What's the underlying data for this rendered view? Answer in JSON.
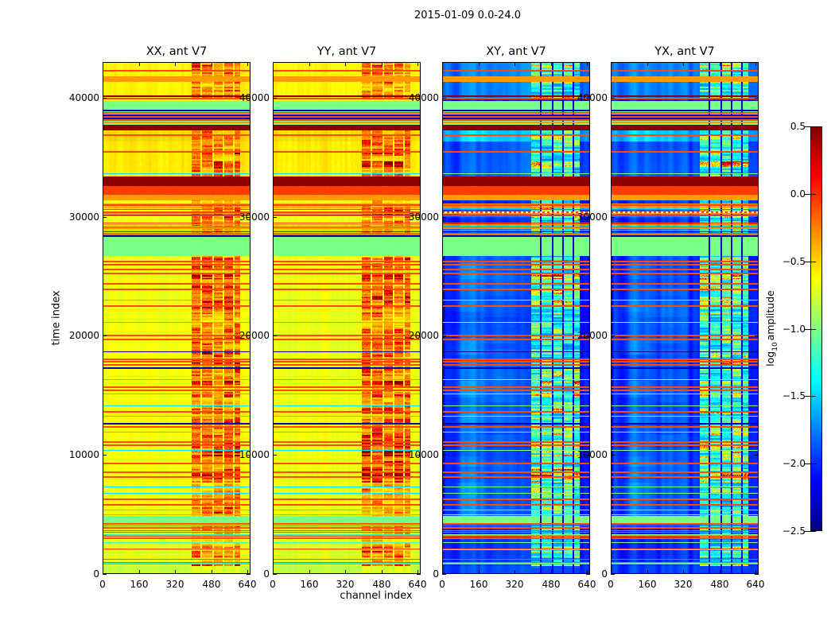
{
  "figure": {
    "suptitle": "2015-01-09 0.0-24.0",
    "background": "#ffffff"
  },
  "chart_data": {
    "type": "heatmap",
    "title": "2015-01-09 0.0-24.0",
    "xlabel": "channel index",
    "ylabel": "time index",
    "x_range": [
      0,
      654
    ],
    "y_range": [
      0,
      43000
    ],
    "x_ticks": [
      0,
      160,
      320,
      480,
      640
    ],
    "y_ticks": [
      0,
      10000,
      20000,
      30000,
      40000
    ],
    "colormap": "jet",
    "clim": [
      -2.5,
      0.5
    ],
    "grid": false,
    "panels": [
      {
        "title": "XX, ant V7",
        "kind": "auto",
        "seed": 1
      },
      {
        "title": "YY, ant V7",
        "kind": "auto",
        "seed": 2
      },
      {
        "title": "XY, ant V7",
        "kind": "cross",
        "seed": 3
      },
      {
        "title": "YX, ant V7",
        "kind": "cross",
        "seed": 4
      }
    ],
    "colorbar": {
      "label_pre": "log",
      "label_sub": "10",
      "label_post": "amplitude",
      "ticks": [
        "0.5",
        "0.0",
        "−0.5",
        "−1.0",
        "−1.5",
        "−2.0",
        "−2.5"
      ],
      "tick_values": [
        0.5,
        0,
        -0.5,
        -1,
        -1.5,
        -2,
        -2.5
      ]
    },
    "bands": [
      [
        0,
        700,
        "quiet"
      ],
      [
        700,
        4300,
        "striped"
      ],
      [
        4300,
        4900,
        "green"
      ],
      [
        4900,
        26700,
        "base"
      ],
      [
        26700,
        28300,
        "green"
      ],
      [
        28300,
        28450,
        "base"
      ],
      [
        28450,
        29500,
        "hotmix"
      ],
      [
        29500,
        29900,
        "base"
      ],
      [
        29900,
        31100,
        "hotmix"
      ],
      [
        31100,
        31350,
        "base"
      ],
      [
        31350,
        31850,
        "orange"
      ],
      [
        31850,
        32600,
        "red"
      ],
      [
        32600,
        33400,
        "maroon"
      ],
      [
        33400,
        36300,
        "base2"
      ],
      [
        36300,
        37250,
        "warm"
      ],
      [
        37250,
        37700,
        "maroon"
      ],
      [
        37700,
        38800,
        "greenlines"
      ],
      [
        38800,
        39750,
        "green"
      ],
      [
        39750,
        39900,
        "base"
      ],
      [
        39900,
        41350,
        "top"
      ],
      [
        41350,
        41800,
        "orange"
      ],
      [
        41800,
        43000,
        "top"
      ]
    ],
    "lines": [
      [
        42250,
        "red"
      ],
      [
        40100,
        "maroon"
      ],
      [
        39950,
        "red"
      ],
      [
        38950,
        "blue"
      ],
      [
        38700,
        "red"
      ],
      [
        38550,
        "blue"
      ],
      [
        38400,
        "red"
      ],
      [
        38250,
        "blue"
      ],
      [
        38100,
        "red"
      ],
      [
        37950,
        "orange"
      ],
      [
        36850,
        "red"
      ],
      [
        35450,
        "red"
      ],
      [
        33650,
        "cyan"
      ],
      [
        30350,
        "dotted"
      ],
      [
        28400,
        "blue"
      ],
      [
        26250,
        "red"
      ],
      [
        25950,
        "red"
      ],
      [
        25600,
        "red"
      ],
      [
        25250,
        "red"
      ],
      [
        24350,
        "red"
      ],
      [
        23900,
        "red"
      ],
      [
        23000,
        "cyan"
      ],
      [
        22500,
        "red"
      ],
      [
        21100,
        "cyan"
      ],
      [
        20050,
        "red"
      ],
      [
        19700,
        "red"
      ],
      [
        18650,
        "navy"
      ],
      [
        18050,
        "red"
      ],
      [
        17800,
        "red"
      ],
      [
        17550,
        "red"
      ],
      [
        17300,
        "blue"
      ],
      [
        16300,
        "cyan"
      ],
      [
        15700,
        "red"
      ],
      [
        15450,
        "red"
      ],
      [
        15100,
        "cyan"
      ],
      [
        14100,
        "cyan"
      ],
      [
        13650,
        "red"
      ],
      [
        13250,
        "cyan"
      ],
      [
        12650,
        "blue"
      ],
      [
        12350,
        "red"
      ],
      [
        11900,
        "cyan"
      ],
      [
        11100,
        "red"
      ],
      [
        10800,
        "red"
      ],
      [
        10400,
        "cyan"
      ],
      [
        9300,
        "red"
      ],
      [
        8550,
        "red"
      ],
      [
        8150,
        "red"
      ],
      [
        7300,
        "cyan"
      ],
      [
        6800,
        "cyan"
      ],
      [
        6300,
        "red"
      ],
      [
        5800,
        "red"
      ],
      [
        5400,
        "cyan"
      ],
      [
        4950,
        "cyan"
      ],
      [
        50,
        "navy"
      ]
    ],
    "rfi": {
      "channels": [
        395,
        610
      ],
      "separators": [
        437,
        489,
        535,
        581
      ]
    }
  }
}
